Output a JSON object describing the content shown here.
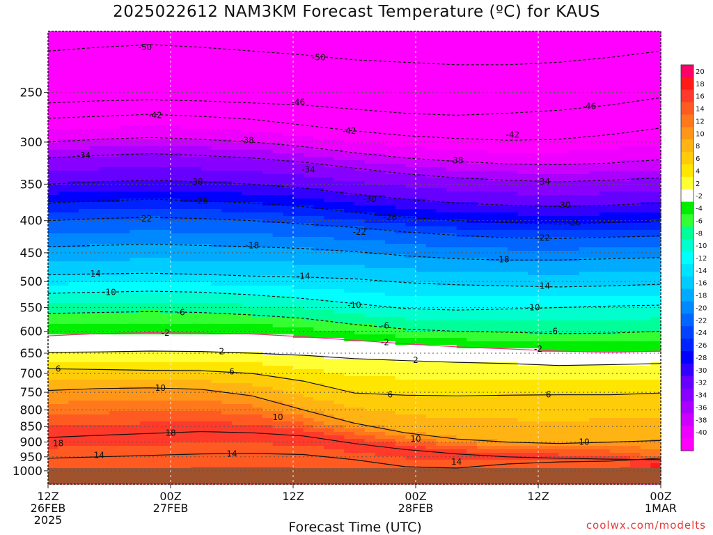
{
  "title": "2025022612 NAM3KM Forecast Temperature (ºC) for KAUS",
  "credit": "coolwx.com/modelts",
  "chart_data": {
    "type": "heatmap",
    "xlabel": "Forecast Time (UTC)",
    "ylabel": "",
    "x_range": [
      0,
      60
    ],
    "x_unit": "hours from 2025-02-26 12Z",
    "y_range_hPa": [
      1050,
      200
    ],
    "x_ticks": [
      {
        "hour": 0,
        "lines": [
          "12Z",
          "26FEB",
          "2025"
        ]
      },
      {
        "hour": 12,
        "lines": [
          "00Z",
          "27FEB"
        ]
      },
      {
        "hour": 24,
        "lines": [
          "12Z"
        ]
      },
      {
        "hour": 36,
        "lines": [
          "00Z",
          "28FEB"
        ]
      },
      {
        "hour": 48,
        "lines": [
          "12Z"
        ]
      },
      {
        "hour": 60,
        "lines": [
          "00Z",
          "1MAR"
        ]
      }
    ],
    "y_ticks": [
      250,
      300,
      350,
      400,
      450,
      500,
      550,
      600,
      650,
      700,
      750,
      800,
      850,
      900,
      950,
      1000
    ],
    "grid": true,
    "ground_level_hPa": 990,
    "colorbar": {
      "placement": "right",
      "labels": [
        "20",
        "18",
        "16",
        "14",
        "12",
        "10",
        "8",
        "6",
        "4",
        "2",
        "-2",
        "-4",
        "-6",
        "-8",
        "-10",
        "-12",
        "-14",
        "-16",
        "-18",
        "-20",
        "-22",
        "-24",
        "-26",
        "-28",
        "-30",
        "-32",
        "-34",
        "-36",
        "-38",
        "-40"
      ],
      "colors": [
        "#ff0066",
        "#ff1a1a",
        "#ff3a2a",
        "#ff5a22",
        "#ff781c",
        "#ff9618",
        "#ffb414",
        "#ffcc0a",
        "#ffe600",
        "#ffff33",
        "#ffffff",
        "#00ee00",
        "#33ff33",
        "#00ff99",
        "#00ffcc",
        "#00ffff",
        "#00e4ff",
        "#00ccff",
        "#00aaff",
        "#0088ff",
        "#0066ff",
        "#0044ff",
        "#0022ff",
        "#0000ff",
        "#3300ff",
        "#6600ff",
        "#8800ff",
        "#aa00ff",
        "#cc00ff",
        "#ee00ff",
        "#ff00ff"
      ]
    },
    "isotherms": [
      {
        "temp": 18,
        "p": [
          885,
          878,
          872,
          866,
          870,
          880,
          905,
          925,
          940,
          950,
          955,
          958,
          960
        ]
      },
      {
        "temp": 14,
        "p": [
          955,
          950,
          945,
          940,
          938,
          942,
          960,
          985,
          990,
          975,
          968,
          965,
          955
        ]
      },
      {
        "temp": 10,
        "p": [
          745,
          740,
          738,
          742,
          760,
          800,
          840,
          870,
          890,
          900,
          905,
          900,
          895
        ]
      },
      {
        "temp": 6,
        "p": [
          688,
          690,
          692,
          693,
          700,
          720,
          752,
          758,
          760,
          758,
          757,
          757,
          752
        ]
      },
      {
        "temp": 2,
        "p": [
          648,
          647,
          645,
          646,
          650,
          655,
          663,
          668,
          672,
          675,
          680,
          678,
          675
        ]
      },
      {
        "temp": -2,
        "p": [
          610,
          605,
          603,
          604,
          606,
          612,
          620,
          628,
          635,
          640,
          645,
          648,
          645
        ]
      },
      {
        "temp": -6,
        "p": [
          562,
          560,
          558,
          560,
          565,
          572,
          585,
          595,
          600,
          602,
          605,
          604,
          600
        ]
      },
      {
        "temp": -10,
        "p": [
          522,
          520,
          518,
          520,
          525,
          532,
          542,
          552,
          555,
          553,
          550,
          547,
          545
        ]
      },
      {
        "temp": -14,
        "p": [
          488,
          486,
          485,
          487,
          490,
          492,
          495,
          502,
          506,
          508,
          510,
          508,
          505
        ]
      },
      {
        "temp": -18,
        "p": [
          440,
          438,
          436,
          438,
          440,
          443,
          448,
          455,
          460,
          462,
          462,
          460,
          458
        ]
      },
      {
        "temp": -22,
        "p": [
          400,
          397,
          395,
          397,
          400,
          405,
          410,
          417,
          422,
          426,
          427,
          425,
          423
        ]
      },
      {
        "temp": -26,
        "p": [
          375,
          372,
          370,
          372,
          375,
          380,
          388,
          395,
          400,
          403,
          405,
          403,
          400
        ]
      },
      {
        "temp": -30,
        "p": [
          350,
          347,
          345,
          347,
          350,
          355,
          363,
          370,
          375,
          378,
          380,
          378,
          375
        ]
      },
      {
        "temp": -34,
        "p": [
          318,
          315,
          313,
          315,
          318,
          323,
          330,
          337,
          342,
          345,
          347,
          345,
          342
        ]
      },
      {
        "temp": -38,
        "p": [
          300,
          297,
          295,
          297,
          300,
          305,
          312,
          318,
          322,
          325,
          326,
          324,
          320
        ]
      },
      {
        "temp": -42,
        "p": [
          275,
          273,
          271,
          273,
          276,
          282,
          288,
          293,
          296,
          298,
          297,
          292,
          285
        ]
      },
      {
        "temp": -46,
        "p": [
          260,
          258,
          257,
          258,
          260,
          262,
          266,
          270,
          272,
          270,
          267,
          262,
          255
        ]
      },
      {
        "temp": -50,
        "p": [
          215,
          212,
          210,
          212,
          215,
          218,
          222,
          224,
          226,
          226,
          224,
          220,
          215
        ]
      }
    ],
    "isotherm_hours": [
      0,
      5,
      10,
      15,
      20,
      25,
      30,
      35,
      40,
      45,
      50,
      55,
      60
    ],
    "contour_labels": [
      {
        "text": "-50",
        "hour": 9.5,
        "p": 212
      },
      {
        "text": "-50",
        "hour": 26.5,
        "p": 220
      },
      {
        "text": "-46",
        "hour": 24.5,
        "p": 259
      },
      {
        "text": "-46",
        "hour": 53,
        "p": 263
      },
      {
        "text": "-42",
        "hour": 10.5,
        "p": 272
      },
      {
        "text": "-42",
        "hour": 29.5,
        "p": 288
      },
      {
        "text": "-42",
        "hour": 45.5,
        "p": 292
      },
      {
        "text": "-38",
        "hour": 19.5,
        "p": 298
      },
      {
        "text": "-38",
        "hour": 40,
        "p": 321
      },
      {
        "text": "-34",
        "hour": 3.5,
        "p": 315
      },
      {
        "text": "-34",
        "hour": 25.5,
        "p": 332
      },
      {
        "text": "-34",
        "hour": 48.5,
        "p": 347
      },
      {
        "text": "-30",
        "hour": 14.5,
        "p": 347
      },
      {
        "text": "-30",
        "hour": 31.5,
        "p": 370
      },
      {
        "text": "-30",
        "hour": 50.5,
        "p": 378
      },
      {
        "text": "-26",
        "hour": 15,
        "p": 372
      },
      {
        "text": "-26",
        "hour": 33.5,
        "p": 395
      },
      {
        "text": "-26",
        "hour": 51.5,
        "p": 403
      },
      {
        "text": "-22",
        "hour": 9.5,
        "p": 397
      },
      {
        "text": "-22",
        "hour": 30.5,
        "p": 417
      },
      {
        "text": "-22",
        "hour": 48.5,
        "p": 426
      },
      {
        "text": "-18",
        "hour": 20,
        "p": 438
      },
      {
        "text": "-18",
        "hour": 44.5,
        "p": 461
      },
      {
        "text": "-14",
        "hour": 4.5,
        "p": 486
      },
      {
        "text": "-14",
        "hour": 25,
        "p": 490
      },
      {
        "text": "-14",
        "hour": 48.5,
        "p": 508
      },
      {
        "text": "-10",
        "hour": 6,
        "p": 520
      },
      {
        "text": "-10",
        "hour": 30,
        "p": 545
      },
      {
        "text": "-10",
        "hour": 47.5,
        "p": 550
      },
      {
        "text": "-6",
        "hour": 13,
        "p": 560
      },
      {
        "text": "-6",
        "hour": 33,
        "p": 588
      },
      {
        "text": "-6",
        "hour": 49.5,
        "p": 600
      },
      {
        "text": "-2",
        "hour": 11.5,
        "p": 604
      },
      {
        "text": "-2",
        "hour": 33,
        "p": 625
      },
      {
        "text": "-2",
        "hour": 48,
        "p": 640
      },
      {
        "text": "2",
        "hour": 17,
        "p": 646
      },
      {
        "text": "2",
        "hour": 36,
        "p": 667
      },
      {
        "text": "6",
        "hour": 1,
        "p": 688
      },
      {
        "text": "6",
        "hour": 18,
        "p": 695
      },
      {
        "text": "6",
        "hour": 33.5,
        "p": 757
      },
      {
        "text": "6",
        "hour": 49,
        "p": 757
      },
      {
        "text": "10",
        "hour": 11,
        "p": 738
      },
      {
        "text": "10",
        "hour": 22.5,
        "p": 822
      },
      {
        "text": "10",
        "hour": 36,
        "p": 890
      },
      {
        "text": "10",
        "hour": 52.5,
        "p": 900
      },
      {
        "text": "18",
        "hour": 1,
        "p": 905
      },
      {
        "text": "18",
        "hour": 12,
        "p": 870
      },
      {
        "text": "14",
        "hour": 5,
        "p": 945
      },
      {
        "text": "14",
        "hour": 18,
        "p": 940
      },
      {
        "text": "14",
        "hour": 40,
        "p": 968
      }
    ]
  }
}
